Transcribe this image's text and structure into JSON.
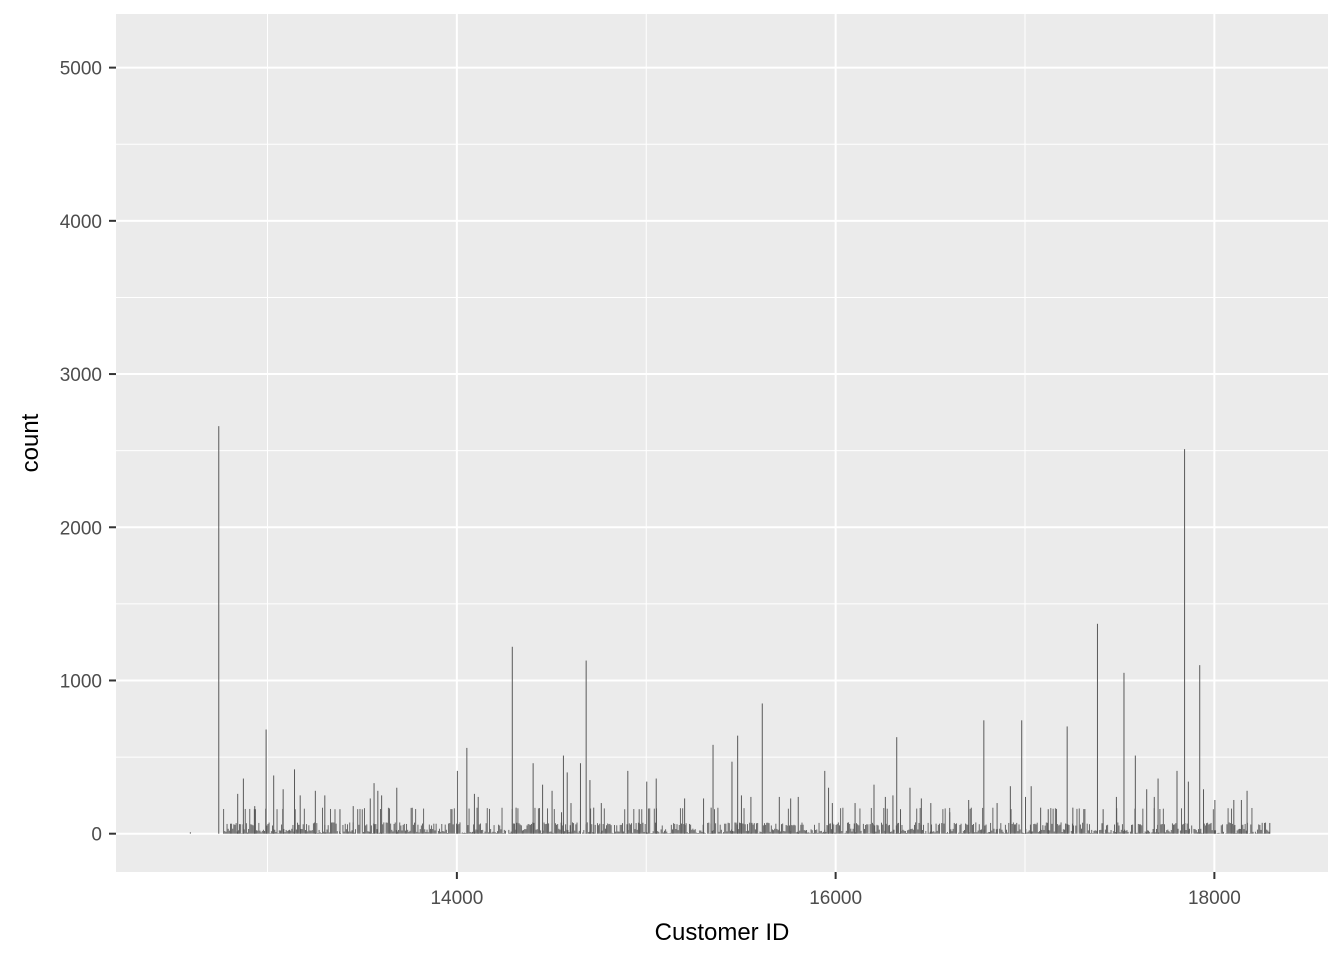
{
  "chart_data": {
    "type": "bar",
    "xlabel": "Customer ID",
    "ylabel": "count",
    "xlim": [
      12200,
      18600
    ],
    "ylim": [
      -250,
      5350
    ],
    "x_ticks": [
      14000,
      16000,
      18000
    ],
    "x_tick_labels": [
      "14000",
      "16000",
      "18000"
    ],
    "y_ticks": [
      0,
      1000,
      2000,
      3000,
      4000,
      5000
    ],
    "y_tick_labels": [
      "0",
      "1000",
      "2000",
      "3000",
      "4000",
      "5000"
    ],
    "grid": true,
    "legend": "none",
    "bar_color": "#595959",
    "background_color": "#ebebeb",
    "grid_color": "#ffffff",
    "x": [
      12740,
      12840,
      12870,
      12930,
      12990,
      13030,
      13080,
      13140,
      13170,
      13250,
      13300,
      13380,
      13450,
      13540,
      13560,
      13580,
      13600,
      13680,
      14000,
      14050,
      14090,
      14110,
      14290,
      14310,
      14400,
      14450,
      14500,
      14550,
      14560,
      14580,
      14600,
      14650,
      14680,
      14700,
      14720,
      14760,
      14900,
      14960,
      15000,
      15050,
      15200,
      15300,
      15340,
      15350,
      15450,
      15480,
      15500,
      15550,
      15610,
      15700,
      15760,
      15800,
      15940,
      15960,
      15980,
      16100,
      16200,
      16260,
      16300,
      16320,
      16340,
      16390,
      16450,
      16500,
      16600,
      16700,
      16780,
      16850,
      16920,
      16980,
      17000,
      17030,
      17080,
      17120,
      17220,
      17250,
      17380,
      17410,
      17480,
      17520,
      17580,
      17640,
      17680,
      17700,
      17800,
      17840,
      17860,
      17920,
      17940,
      18000,
      18100,
      18140,
      18170,
      18290
    ],
    "values": [
      2660,
      260,
      360,
      180,
      680,
      380,
      290,
      420,
      250,
      280,
      250,
      160,
      180,
      230,
      330,
      280,
      250,
      300,
      410,
      560,
      260,
      240,
      1220,
      170,
      460,
      320,
      280,
      140,
      510,
      400,
      200,
      460,
      1130,
      350,
      170,
      200,
      410,
      160,
      340,
      360,
      230,
      230,
      170,
      580,
      470,
      640,
      250,
      240,
      850,
      240,
      230,
      240,
      410,
      300,
      200,
      200,
      320,
      240,
      250,
      630,
      160,
      300,
      230,
      200,
      140,
      220,
      740,
      200,
      310,
      740,
      240,
      310,
      170,
      160,
      700,
      170,
      1370,
      160,
      240,
      1050,
      510,
      290,
      240,
      360,
      410,
      2510,
      340,
      1100,
      290,
      220,
      220,
      220,
      280,
      70
    ]
  }
}
